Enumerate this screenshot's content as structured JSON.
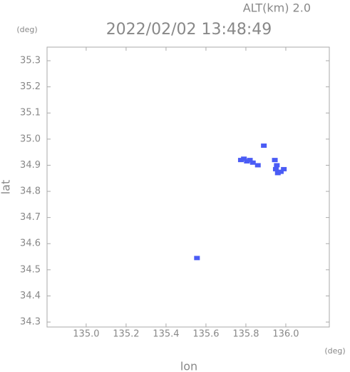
{
  "chart_data": {
    "type": "scatter",
    "title": "2022/02/02 13:48:49",
    "subtitle": "ALT(km) 2.0",
    "x_label": "lon",
    "y_label": "lat",
    "x_unit": "(deg)",
    "y_unit": "(deg)",
    "color": "#4a5cf5",
    "x": [
      135.775,
      135.79,
      135.805,
      135.82,
      135.835,
      135.86,
      135.89,
      135.945,
      135.955,
      135.95,
      135.96,
      135.975,
      135.99,
      135.555
    ],
    "y": [
      34.92,
      34.925,
      34.915,
      34.92,
      34.91,
      34.9,
      34.975,
      34.92,
      34.9,
      34.885,
      34.87,
      34.875,
      34.885,
      34.545
    ],
    "xlim": [
      134.804,
      136.218
    ],
    "ylim": [
      34.281,
      35.352
    ],
    "xticks": [
      {
        "value": 135,
        "label": "135.0"
      },
      135.2,
      135.4,
      135.6,
      135.8,
      {
        "value": 136,
        "label": "136.0"
      }
    ],
    "yticks": [
      34.3,
      34.4,
      34.5,
      34.6,
      34.7,
      34.8,
      34.9,
      {
        "value": 35,
        "label": "35.0"
      },
      35.1,
      35.2,
      35.3
    ]
  }
}
